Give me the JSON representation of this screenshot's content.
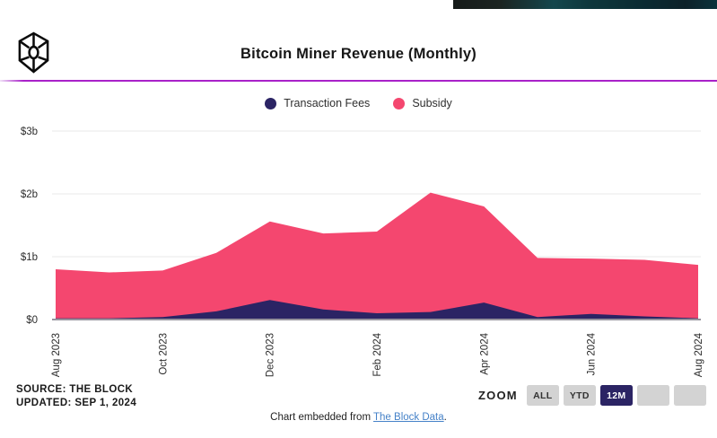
{
  "header": {
    "title": "Bitcoin Miner Revenue (Monthly)",
    "divider_color": "#a922c9",
    "logo": "the-block-cube-logo"
  },
  "legend": [
    {
      "label": "Transaction Fees",
      "color": "#2b2464"
    },
    {
      "label": "Subsidy",
      "color": "#f4476f"
    }
  ],
  "chart_data": {
    "type": "area",
    "stacked": true,
    "title": "Bitcoin Miner Revenue (Monthly)",
    "unit": "USD billions",
    "x": [
      "Aug 2023",
      "Sep 2023",
      "Oct 2023",
      "Nov 2023",
      "Dec 2023",
      "Jan 2024",
      "Feb 2024",
      "Mar 2024",
      "Apr 2024",
      "May 2024",
      "Jun 2024",
      "Jul 2024",
      "Aug 2024"
    ],
    "x_tick_labels": [
      "Aug 2023",
      "Oct 2023",
      "Dec 2023",
      "Feb 2024",
      "Apr 2024",
      "Jun 2024",
      "Aug 2024"
    ],
    "series": [
      {
        "name": "Transaction Fees",
        "color": "#2b2464",
        "values": [
          0.02,
          0.02,
          0.04,
          0.13,
          0.31,
          0.16,
          0.1,
          0.12,
          0.27,
          0.04,
          0.09,
          0.05,
          0.02
        ]
      },
      {
        "name": "Subsidy",
        "color": "#f4476f",
        "values": [
          0.78,
          0.73,
          0.74,
          0.93,
          1.25,
          1.21,
          1.3,
          1.9,
          1.53,
          0.94,
          0.88,
          0.9,
          0.85
        ]
      }
    ],
    "totals": [
      0.8,
      0.75,
      0.78,
      1.06,
      1.56,
      1.37,
      1.4,
      2.02,
      1.8,
      0.98,
      0.97,
      0.95,
      0.87
    ],
    "y_ticks": [
      {
        "label": "$0",
        "value": 0
      },
      {
        "label": "$1b",
        "value": 1
      },
      {
        "label": "$2b",
        "value": 2
      },
      {
        "label": "$3b",
        "value": 3
      }
    ],
    "ylim": [
      0,
      3.2
    ],
    "grid": true,
    "legend_position": "top",
    "gridline_color": "#e9e9e9",
    "axisline_color": "#96939e",
    "tick_text_color": "#2d2d2d"
  },
  "footer": {
    "source_line": "SOURCE: THE BLOCK",
    "updated_line": "UPDATED: SEP 1, 2024"
  },
  "zoom_controls": {
    "label": "ZOOM",
    "buttons": [
      {
        "label": "ALL",
        "active": false
      },
      {
        "label": "YTD",
        "active": false
      },
      {
        "label": "12M",
        "active": true
      },
      {
        "label": "",
        "active": false
      },
      {
        "label": "",
        "active": false
      }
    ]
  },
  "embed": {
    "prefix": "Chart embedded from ",
    "link_text": "The Block Data",
    "suffix": "."
  }
}
